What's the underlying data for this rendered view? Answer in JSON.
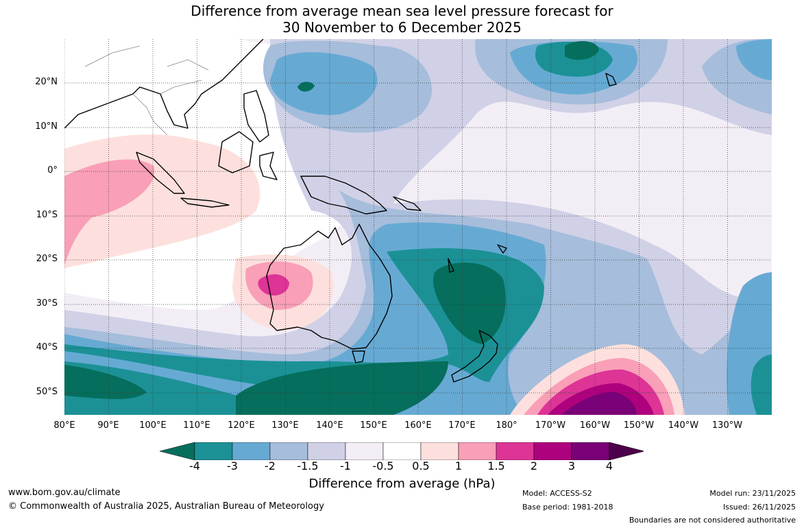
{
  "title_line1": "Difference from average mean sea level pressure forecast for",
  "title_line2": "30 November to 6 December 2025",
  "lat_labels": [
    "20°N",
    "10°N",
    "0°",
    "10°S",
    "20°S",
    "30°S",
    "40°S",
    "50°S"
  ],
  "lon_labels": [
    "80°E",
    "90°E",
    "100°E",
    "110°E",
    "120°E",
    "130°E",
    "140°E",
    "150°E",
    "160°E",
    "170°E",
    "180°",
    "170°W",
    "160°W",
    "150°W",
    "140°W",
    "130°W"
  ],
  "colorbar": {
    "title": "Difference from average (hPa)",
    "tick_labels": [
      "-4",
      "-3",
      "-2",
      "-1.5",
      "-1",
      "-0.5",
      "0.5",
      "1",
      "1.5",
      "2",
      "3",
      "4"
    ],
    "bins": [
      {
        "color": "#066e5c"
      },
      {
        "color": "#1b9196"
      },
      {
        "color": "#66aad3"
      },
      {
        "color": "#a6bddb"
      },
      {
        "color": "#d0d1e6"
      },
      {
        "color": "#f3eef6"
      },
      {
        "color": "#ffffff"
      },
      {
        "color": "#fde0dd"
      },
      {
        "color": "#f99fb8"
      },
      {
        "color": "#dd3496"
      },
      {
        "color": "#ae017e"
      },
      {
        "color": "#7a0177"
      },
      {
        "color": "#4d004b"
      }
    ]
  },
  "footer": {
    "website": "www.bom.gov.au/climate",
    "copyright": "© Commonwealth of Australia 2025, Australian Bureau of Meteorology",
    "model": "Model: ACCESS-S2",
    "base_period": "Base period: 1981-2018",
    "model_run": "Model run: 23/11/2025",
    "issued": "Issued: 26/11/2025",
    "disclaimer": "Boundaries are not considered authoritative"
  },
  "map_data": {
    "projection": "equirectangular",
    "lon_range": [
      "80°E",
      "125°W"
    ],
    "lat_range": [
      "55°S",
      "30°N"
    ],
    "grid": true,
    "anomaly_regions": [
      {
        "region": "Northwest Pacific east of Philippines",
        "value_range": "-2 to -3"
      },
      {
        "region": "North Pacific near Hawaii",
        "value_range": "-3 to -4"
      },
      {
        "region": "Tasman Sea / east of Australia",
        "value_range": "-3 to -4"
      },
      {
        "region": "Southern Ocean south of Australia",
        "value_range": "-3 to -4"
      },
      {
        "region": "Central Australia",
        "value_range": "1.5 to 2"
      },
      {
        "region": "South Pacific near 160°W 50°S",
        "value_range": "3 to 4"
      },
      {
        "region": "Eastern Indian Ocean",
        "value_range": "0.5 to 1.5"
      }
    ]
  }
}
